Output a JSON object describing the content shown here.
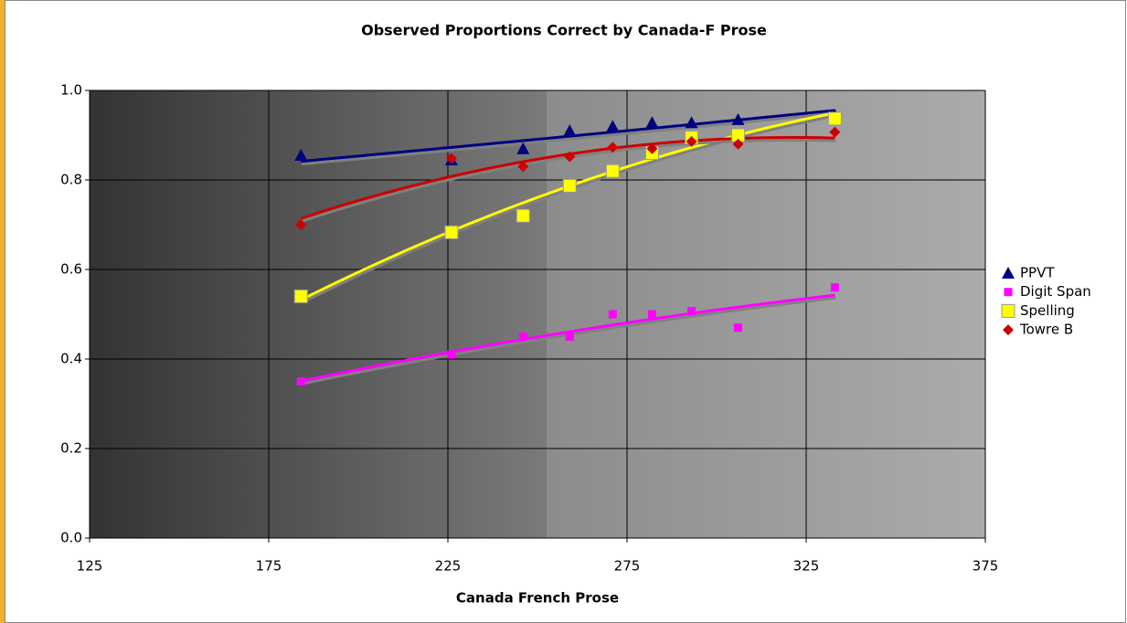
{
  "chart_data": {
    "type": "scatter",
    "title": "Observed Proportions Correct by Canada-F Prose",
    "x_label": "Canada French Prose",
    "x": [
      184,
      226,
      246,
      259,
      271,
      282,
      293,
      306,
      333
    ],
    "series": [
      {
        "name": "PPVT",
        "color": "#000080",
        "marker": "triangle",
        "values": [
          0.855,
          0.845,
          0.87,
          0.91,
          0.92,
          0.928,
          0.928,
          0.935,
          0.945
        ]
      },
      {
        "name": "Digit Span",
        "color": "#ff00ff",
        "marker": "square",
        "values": [
          0.35,
          0.41,
          0.45,
          0.45,
          0.5,
          0.5,
          0.507,
          0.47,
          0.56
        ]
      },
      {
        "name": "Spelling",
        "color": "#ffff00",
        "marker": "bigsquare",
        "values": [
          0.54,
          0.683,
          0.72,
          0.787,
          0.82,
          0.86,
          0.895,
          0.9,
          0.937
        ]
      },
      {
        "name": "Towre B",
        "color": "#cc0000",
        "marker": "diamond",
        "values": [
          0.7,
          0.848,
          0.83,
          0.852,
          0.873,
          0.87,
          0.886,
          0.88,
          0.907
        ]
      }
    ],
    "trendline": "polynomial",
    "xlim": [
      125,
      375
    ],
    "xticks": [
      125,
      175,
      225,
      275,
      325,
      375
    ],
    "ylim": [
      0,
      1
    ],
    "yticks": [
      {
        "value": 0,
        "label": "0.0"
      },
      {
        "value": 0.2,
        "label": "0.2"
      },
      {
        "value": 0.4,
        "label": "0.4"
      },
      {
        "value": 0.6,
        "label": "0.6"
      },
      {
        "value": 0.8,
        "label": "0.8"
      },
      {
        "value": 1,
        "label": "1.0"
      }
    ],
    "grid": true,
    "legend": "right"
  }
}
